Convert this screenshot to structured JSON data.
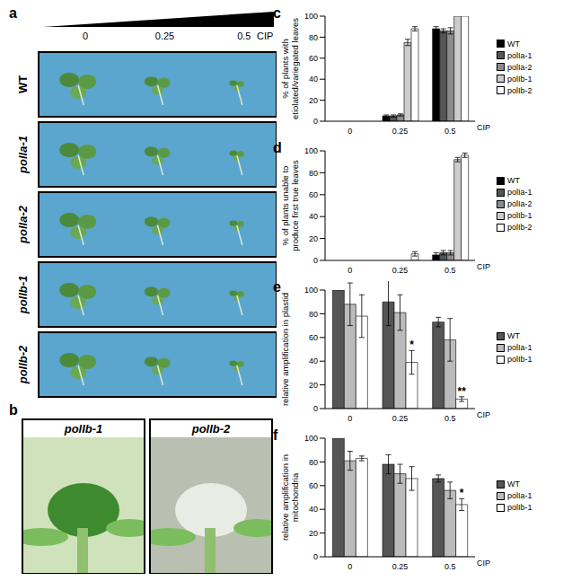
{
  "figure": {
    "a": {
      "label": "a",
      "doses": [
        "0",
        "0.25",
        "0.5"
      ],
      "dose_label": "CIP",
      "rows": [
        "WT",
        "polIa-1",
        "polIa-2",
        "polIb-1",
        "polIb-2"
      ]
    },
    "b": {
      "label": "b",
      "images": [
        "polIb-1",
        "polIb-2"
      ]
    }
  },
  "chart_data": [
    {
      "type": "bar",
      "panel": "c",
      "y_label": "% of plants with etiolated/variegated leaves",
      "x_label": "CIP",
      "categories": [
        "0",
        "0.25",
        "0.5"
      ],
      "ylim": [
        0,
        100
      ],
      "yticks": [
        0,
        20,
        40,
        60,
        80,
        100
      ],
      "legend": "right",
      "series": [
        {
          "name": "WT",
          "color": "#000000",
          "values": [
            0,
            5,
            88
          ],
          "errors": [
            0,
            1,
            2
          ]
        },
        {
          "name": "polIa-1",
          "color": "#555555",
          "values": [
            0,
            5,
            86
          ],
          "errors": [
            0,
            1,
            2
          ]
        },
        {
          "name": "polIa-2",
          "color": "#8c8c8c",
          "values": [
            0,
            6,
            86
          ],
          "errors": [
            0,
            1,
            3
          ]
        },
        {
          "name": "polIb-1",
          "color": "#cccccc",
          "values": [
            0,
            75,
            100
          ],
          "errors": [
            0,
            3,
            0
          ]
        },
        {
          "name": "polIb-2",
          "color": "#ffffff",
          "values": [
            0,
            88,
            100
          ],
          "errors": [
            0,
            2,
            0
          ]
        }
      ]
    },
    {
      "type": "bar",
      "panel": "d",
      "y_label": "% of plants unable to produce first true leaves",
      "x_label": "CIP",
      "categories": [
        "0",
        "0.25",
        "0.5"
      ],
      "ylim": [
        0,
        100
      ],
      "yticks": [
        0,
        20,
        40,
        60,
        80,
        100
      ],
      "legend": "right",
      "series": [
        {
          "name": "WT",
          "color": "#000000",
          "values": [
            0,
            0,
            5
          ],
          "errors": [
            0,
            0,
            2
          ]
        },
        {
          "name": "polIa-1",
          "color": "#555555",
          "values": [
            0,
            0,
            7
          ],
          "errors": [
            0,
            0,
            2
          ]
        },
        {
          "name": "polIa-2",
          "color": "#8c8c8c",
          "values": [
            0,
            0,
            7
          ],
          "errors": [
            0,
            0,
            2
          ]
        },
        {
          "name": "polIb-1",
          "color": "#cccccc",
          "values": [
            0,
            0,
            92
          ],
          "errors": [
            0,
            0,
            2
          ]
        },
        {
          "name": "polIb-2",
          "color": "#ffffff",
          "values": [
            0,
            6,
            96
          ],
          "errors": [
            0,
            2,
            2
          ]
        }
      ]
    },
    {
      "type": "bar",
      "panel": "e",
      "y_label": "relative amplification in plastid",
      "x_label": "CIP",
      "categories": [
        "0",
        "0.25",
        "0.5"
      ],
      "ylim": [
        0,
        100
      ],
      "yticks": [
        0,
        20,
        40,
        60,
        80,
        100
      ],
      "legend": "right",
      "series": [
        {
          "name": "WT",
          "color": "#555555",
          "values": [
            100,
            90,
            73
          ],
          "errors": [
            0,
            20,
            4
          ]
        },
        {
          "name": "polIa-1",
          "color": "#bbbbbb",
          "values": [
            88,
            81,
            58
          ],
          "errors": [
            18,
            15,
            18
          ]
        },
        {
          "name": "polIb-1",
          "color": "#ffffff",
          "values": [
            78,
            39,
            8
          ],
          "errors": [
            18,
            10,
            2
          ],
          "annotations": [
            null,
            "*",
            "**"
          ]
        }
      ]
    },
    {
      "type": "bar",
      "panel": "f",
      "y_label": "relative amplification in mitochondria",
      "x_label": "CIP",
      "categories": [
        "0",
        "0.25",
        "0.5"
      ],
      "ylim": [
        0,
        100
      ],
      "yticks": [
        0,
        20,
        40,
        60,
        80,
        100
      ],
      "legend": "right",
      "series": [
        {
          "name": "WT",
          "color": "#555555",
          "values": [
            100,
            78,
            66
          ],
          "errors": [
            0,
            8,
            3
          ]
        },
        {
          "name": "polIa-1",
          "color": "#bbbbbb",
          "values": [
            81,
            70,
            56
          ],
          "errors": [
            8,
            8,
            7
          ]
        },
        {
          "name": "polIb-1",
          "color": "#ffffff",
          "values": [
            83,
            66,
            44
          ],
          "errors": [
            2,
            10,
            5
          ],
          "annotations": [
            null,
            null,
            "*"
          ]
        }
      ]
    }
  ]
}
